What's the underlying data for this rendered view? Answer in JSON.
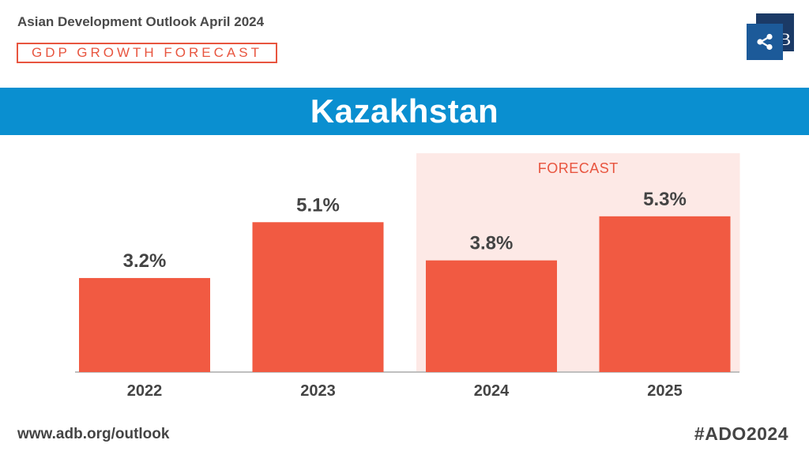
{
  "header": {
    "publication": "Asian Development Outlook April 2024",
    "badge": "GDP GROWTH FORECAST",
    "logo_letter": "B",
    "share_icon": "share-icon"
  },
  "banner": {
    "title": "Kazakhstan"
  },
  "colors": {
    "bar": "#f15a42",
    "forecast_bg": "#fde9e6",
    "forecast_text": "#e8553f",
    "banner": "#0a8fd0",
    "text": "#444444"
  },
  "chart_data": {
    "type": "bar",
    "categories": [
      "2022",
      "2023",
      "2024",
      "2025"
    ],
    "values": [
      3.2,
      5.1,
      3.8,
      5.3
    ],
    "value_labels": [
      "3.2%",
      "5.1%",
      "3.8%",
      "5.3%"
    ],
    "forecast_label": "FORECAST",
    "forecast_categories": [
      "2024",
      "2025"
    ],
    "title": "",
    "xlabel": "",
    "ylabel": "",
    "ylim": [
      0,
      6
    ]
  },
  "footer": {
    "url": "www.adb.org/outlook",
    "hashtag": "#ADO2024"
  }
}
